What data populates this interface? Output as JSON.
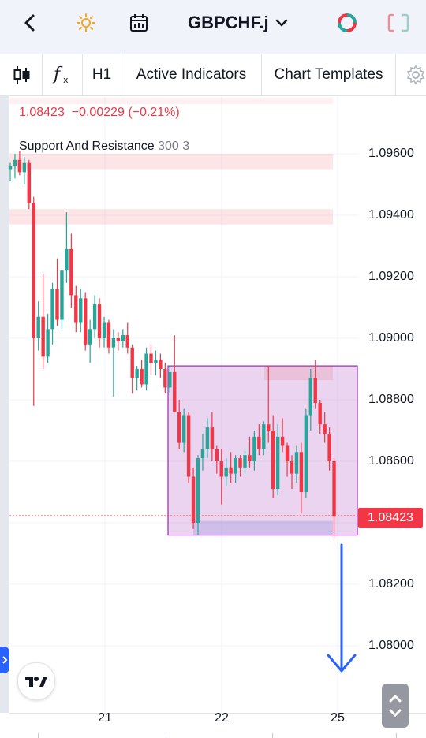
{
  "symbol": "GBPCHF.j",
  "toolbar": {
    "interval": "H1",
    "active_indicators": "Active Indicators",
    "chart_templates": "Chart Templates"
  },
  "legend": {
    "price_line": "1.08423  −0.00229 (−0.21%)",
    "indicator_name": "Support And Resistance",
    "indicator_params": "300 3"
  },
  "last_price": "1.08423",
  "colors": {
    "up": "#26a69a",
    "down": "#f23645",
    "zone": "#9c27b0",
    "arrow": "#2962ff"
  },
  "chart_data": {
    "type": "candlestick",
    "symbol": "GBPCHF.j",
    "interval": "H1",
    "y_ticks": [
      "1.09600",
      "1.09400",
      "1.09200",
      "1.09000",
      "1.08800",
      "1.08600",
      "1.08400",
      "1.08200",
      "1.08000"
    ],
    "x_ticks": [
      "21",
      "22",
      "25"
    ],
    "last_price": 1.08423,
    "change": -0.00229,
    "change_pct": -0.21,
    "resistance_zones": [
      [
        1.0955,
        1.096
      ],
      [
        1.0937,
        1.0942
      ]
    ],
    "highlight_box": {
      "price_high": 1.0891,
      "price_low": 1.0836
    },
    "candles": [
      [
        1.0955,
        1.0957,
        1.0951,
        1.0956
      ],
      [
        1.0956,
        1.096,
        1.0952,
        1.0958
      ],
      [
        1.0958,
        1.0961,
        1.0953,
        1.0954
      ],
      [
        1.0954,
        1.0959,
        1.095,
        1.0957
      ],
      [
        1.0957,
        1.0958,
        1.0942,
        1.0944
      ],
      [
        1.0944,
        1.0946,
        1.0878,
        1.09
      ],
      [
        1.09,
        1.0912,
        1.0896,
        1.0907
      ],
      [
        1.0907,
        1.0921,
        1.089,
        1.0894
      ],
      [
        1.0894,
        1.0908,
        1.0892,
        1.0903
      ],
      [
        1.0903,
        1.0918,
        1.0898,
        1.0916
      ],
      [
        1.0916,
        1.0926,
        1.0904,
        1.0906
      ],
      [
        1.0906,
        1.0922,
        1.0903,
        1.0922
      ],
      [
        1.0922,
        1.0941,
        1.0918,
        1.0929
      ],
      [
        1.0929,
        1.0934,
        1.091,
        1.0914
      ],
      [
        1.0914,
        1.0917,
        1.0902,
        1.0905
      ],
      [
        1.0905,
        1.0916,
        1.0902,
        1.0913
      ],
      [
        1.0913,
        1.0915,
        1.0896,
        1.0898
      ],
      [
        1.0898,
        1.0906,
        1.0892,
        1.0903
      ],
      [
        1.0903,
        1.0914,
        1.09,
        1.0911
      ],
      [
        1.0911,
        1.0913,
        1.0897,
        1.09
      ],
      [
        1.09,
        1.0907,
        1.0897,
        1.0905
      ],
      [
        1.0905,
        1.0906,
        1.0895,
        1.0897
      ],
      [
        1.0897,
        1.0903,
        1.0881,
        1.09
      ],
      [
        1.09,
        1.0902,
        1.0896,
        1.0899
      ],
      [
        1.0899,
        1.0903,
        1.0897,
        1.0901
      ],
      [
        1.0901,
        1.0905,
        1.0895,
        1.0897
      ],
      [
        1.0897,
        1.0898,
        1.0882,
        1.0887
      ],
      [
        1.0887,
        1.0891,
        1.0883,
        1.089
      ],
      [
        1.089,
        1.0893,
        1.0884,
        1.0885
      ],
      [
        1.0885,
        1.0897,
        1.0883,
        1.0895
      ],
      [
        1.0895,
        1.0898,
        1.0888,
        1.0892
      ],
      [
        1.0892,
        1.0896,
        1.0888,
        1.0893
      ],
      [
        1.0893,
        1.0895,
        1.0887,
        1.089
      ],
      [
        1.089,
        1.0892,
        1.0882,
        1.0884
      ],
      [
        1.0884,
        1.0891,
        1.0882,
        1.0889
      ],
      [
        1.0889,
        1.0901,
        1.0876,
        1.0876
      ],
      [
        1.0876,
        1.088,
        1.0864,
        1.0866
      ],
      [
        1.0866,
        1.0877,
        1.0863,
        1.0875
      ],
      [
        1.0875,
        1.0876,
        1.0853,
        1.0855
      ],
      [
        1.0855,
        1.0858,
        1.0838,
        1.084
      ],
      [
        1.084,
        1.0862,
        1.0836,
        1.0861
      ],
      [
        1.0861,
        1.0869,
        1.0857,
        1.0864
      ],
      [
        1.0864,
        1.0874,
        1.0861,
        1.0871
      ],
      [
        1.0871,
        1.0876,
        1.086,
        1.0864
      ],
      [
        1.0864,
        1.0865,
        1.0856,
        1.086
      ],
      [
        1.086,
        1.0864,
        1.0846,
        1.0855
      ],
      [
        1.0855,
        1.0861,
        1.0852,
        1.0858
      ],
      [
        1.0858,
        1.0863,
        1.0853,
        1.0856
      ],
      [
        1.0856,
        1.0862,
        1.0853,
        1.0861
      ],
      [
        1.0861,
        1.0862,
        1.0855,
        1.0858
      ],
      [
        1.0858,
        1.0864,
        1.0856,
        1.0862
      ],
      [
        1.0862,
        1.0868,
        1.0858,
        1.086
      ],
      [
        1.086,
        1.087,
        1.0857,
        1.0868
      ],
      [
        1.0868,
        1.0872,
        1.0862,
        1.0864
      ],
      [
        1.0864,
        1.0873,
        1.0862,
        1.0872
      ],
      [
        1.0872,
        1.0891,
        1.0866,
        1.087
      ],
      [
        1.087,
        1.0875,
        1.0848,
        1.0851
      ],
      [
        1.0851,
        1.0872,
        1.0849,
        1.0868
      ],
      [
        1.0868,
        1.0874,
        1.0863,
        1.0865
      ],
      [
        1.0865,
        1.0866,
        1.0855,
        1.086
      ],
      [
        1.086,
        1.0862,
        1.0851,
        1.0856
      ],
      [
        1.0856,
        1.0865,
        1.0853,
        1.0863
      ],
      [
        1.0863,
        1.0866,
        1.0843,
        1.085
      ],
      [
        1.085,
        1.0877,
        1.0848,
        1.0875
      ],
      [
        1.0875,
        1.089,
        1.087,
        1.0887
      ],
      [
        1.0887,
        1.0893,
        1.0877,
        1.0879
      ],
      [
        1.0879,
        1.088,
        1.0869,
        1.0872
      ],
      [
        1.0872,
        1.0876,
        1.0866,
        1.0869
      ],
      [
        1.0869,
        1.0871,
        1.0857,
        1.086
      ],
      [
        1.086,
        1.0861,
        1.0835,
        1.0842
      ]
    ]
  }
}
